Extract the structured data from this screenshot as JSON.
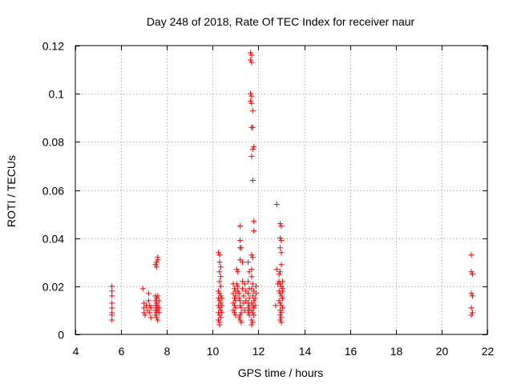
{
  "chart_data": {
    "type": "scatter",
    "title": "Day 248 of 2018, Rate Of TEC Index for receiver naur",
    "xlabel": "GPS time / hours",
    "ylabel": "ROTI / TECUs",
    "xlim": [
      4,
      22
    ],
    "ylim": [
      0,
      0.12
    ],
    "x_ticks": [
      4,
      6,
      8,
      10,
      12,
      14,
      16,
      18,
      20,
      22
    ],
    "x_tick_labels": [
      "4",
      "6",
      "8",
      "10",
      "12",
      "14",
      "16",
      "18",
      "20",
      "22"
    ],
    "y_ticks": [
      0,
      0.02,
      0.04,
      0.06,
      0.08,
      0.1,
      0.12
    ],
    "y_tick_labels": [
      "0",
      "0.02",
      "0.04",
      "0.06",
      "0.08",
      "0.1",
      "0.12"
    ],
    "grid": true,
    "marker": "plus",
    "series": [
      {
        "name": "ROTI",
        "color": "#ff0000",
        "points": [
          [
            5.6,
            0.02
          ],
          [
            5.6,
            0.018
          ],
          [
            5.6,
            0.016
          ],
          [
            5.6,
            0.013
          ],
          [
            5.6,
            0.011
          ],
          [
            5.6,
            0.009
          ],
          [
            5.6,
            0.008
          ],
          [
            5.6,
            0.006
          ],
          [
            6.95,
            0.019
          ],
          [
            7.0,
            0.013
          ],
          [
            7.0,
            0.011
          ],
          [
            7.0,
            0.009
          ],
          [
            7.05,
            0.008
          ],
          [
            7.1,
            0.012
          ],
          [
            7.15,
            0.01
          ],
          [
            7.2,
            0.017
          ],
          [
            7.2,
            0.014
          ],
          [
            7.25,
            0.012
          ],
          [
            7.25,
            0.009
          ],
          [
            7.3,
            0.007
          ],
          [
            7.3,
            0.011
          ],
          [
            7.5,
            0.029
          ],
          [
            7.55,
            0.03
          ],
          [
            7.55,
            0.028
          ],
          [
            7.6,
            0.032
          ],
          [
            7.6,
            0.031
          ],
          [
            7.5,
            0.016
          ],
          [
            7.5,
            0.014
          ],
          [
            7.5,
            0.012
          ],
          [
            7.5,
            0.01
          ],
          [
            7.5,
            0.008
          ],
          [
            7.55,
            0.015
          ],
          [
            7.55,
            0.013
          ],
          [
            7.55,
            0.011
          ],
          [
            7.55,
            0.009
          ],
          [
            7.55,
            0.007
          ],
          [
            7.6,
            0.016
          ],
          [
            7.6,
            0.012
          ],
          [
            7.6,
            0.01
          ],
          [
            7.6,
            0.006
          ],
          [
            7.65,
            0.014
          ],
          [
            7.65,
            0.011
          ],
          [
            7.65,
            0.009
          ],
          [
            10.25,
            0.034
          ],
          [
            10.3,
            0.033
          ],
          [
            10.3,
            0.03
          ],
          [
            10.35,
            0.028
          ],
          [
            10.3,
            0.026
          ],
          [
            10.35,
            0.024
          ],
          [
            10.3,
            0.022
          ],
          [
            10.35,
            0.02
          ],
          [
            10.25,
            0.018
          ],
          [
            10.3,
            0.017
          ],
          [
            10.35,
            0.016
          ],
          [
            10.25,
            0.015
          ],
          [
            10.3,
            0.014
          ],
          [
            10.35,
            0.013
          ],
          [
            10.25,
            0.012
          ],
          [
            10.3,
            0.011
          ],
          [
            10.35,
            0.01
          ],
          [
            10.25,
            0.009
          ],
          [
            10.3,
            0.008
          ],
          [
            10.35,
            0.007
          ],
          [
            10.25,
            0.006
          ],
          [
            10.3,
            0.005
          ],
          [
            10.3,
            0.004
          ],
          [
            10.4,
            0.015
          ],
          [
            10.4,
            0.012
          ],
          [
            10.4,
            0.009
          ],
          [
            10.9,
            0.021
          ],
          [
            10.95,
            0.019
          ],
          [
            10.9,
            0.017
          ],
          [
            10.95,
            0.015
          ],
          [
            10.9,
            0.013
          ],
          [
            10.95,
            0.012
          ],
          [
            10.9,
            0.01
          ],
          [
            10.95,
            0.009
          ],
          [
            11.0,
            0.018
          ],
          [
            11.0,
            0.016
          ],
          [
            11.0,
            0.014
          ],
          [
            11.0,
            0.011
          ],
          [
            11.0,
            0.008
          ],
          [
            11.05,
            0.027
          ],
          [
            11.1,
            0.026
          ],
          [
            11.2,
            0.045
          ],
          [
            11.2,
            0.039
          ],
          [
            11.2,
            0.036
          ],
          [
            11.25,
            0.036
          ],
          [
            11.2,
            0.031
          ],
          [
            11.3,
            0.03
          ],
          [
            11.05,
            0.021
          ],
          [
            11.1,
            0.02
          ],
          [
            11.1,
            0.018
          ],
          [
            11.15,
            0.017
          ],
          [
            11.15,
            0.015
          ],
          [
            11.2,
            0.014
          ],
          [
            11.2,
            0.012
          ],
          [
            11.25,
            0.011
          ],
          [
            11.25,
            0.009
          ],
          [
            11.2,
            0.008
          ],
          [
            11.15,
            0.007
          ],
          [
            11.2,
            0.006
          ],
          [
            11.25,
            0.005
          ],
          [
            11.3,
            0.022
          ],
          [
            11.3,
            0.019
          ],
          [
            11.35,
            0.016
          ],
          [
            11.35,
            0.013
          ],
          [
            11.4,
            0.021
          ],
          [
            11.4,
            0.01
          ],
          [
            11.45,
            0.018
          ],
          [
            11.45,
            0.014
          ],
          [
            11.55,
            0.03
          ],
          [
            11.6,
            0.026
          ],
          [
            11.55,
            0.022
          ],
          [
            11.6,
            0.019
          ],
          [
            11.55,
            0.017
          ],
          [
            11.6,
            0.015
          ],
          [
            11.55,
            0.013
          ],
          [
            11.6,
            0.012
          ],
          [
            11.55,
            0.011
          ],
          [
            11.6,
            0.01
          ],
          [
            11.55,
            0.009
          ],
          [
            11.6,
            0.008
          ],
          [
            11.65,
            0.117
          ],
          [
            11.7,
            0.116
          ],
          [
            11.65,
            0.114
          ],
          [
            11.7,
            0.113
          ],
          [
            11.65,
            0.1
          ],
          [
            11.7,
            0.099
          ],
          [
            11.65,
            0.097
          ],
          [
            11.7,
            0.096
          ],
          [
            11.75,
            0.093
          ],
          [
            11.7,
            0.086
          ],
          [
            11.75,
            0.086
          ],
          [
            11.8,
            0.078
          ],
          [
            11.75,
            0.077
          ],
          [
            11.7,
            0.074
          ],
          [
            11.75,
            0.064
          ],
          [
            11.8,
            0.047
          ],
          [
            11.8,
            0.043
          ],
          [
            11.7,
            0.033
          ],
          [
            11.75,
            0.032
          ],
          [
            11.7,
            0.027
          ],
          [
            11.7,
            0.024
          ],
          [
            11.75,
            0.021
          ],
          [
            11.7,
            0.019
          ],
          [
            11.8,
            0.018
          ],
          [
            11.75,
            0.016
          ],
          [
            11.8,
            0.014
          ],
          [
            11.7,
            0.013
          ],
          [
            11.75,
            0.012
          ],
          [
            11.8,
            0.011
          ],
          [
            11.7,
            0.01
          ],
          [
            11.75,
            0.009
          ],
          [
            11.8,
            0.008
          ],
          [
            11.7,
            0.006
          ],
          [
            11.75,
            0.005
          ],
          [
            11.7,
            0.004
          ],
          [
            11.85,
            0.015
          ],
          [
            11.85,
            0.012
          ],
          [
            11.9,
            0.02
          ],
          [
            11.9,
            0.017
          ],
          [
            12.8,
            0.054
          ],
          [
            12.8,
            0.027
          ],
          [
            12.75,
            0.012
          ],
          [
            12.85,
            0.021
          ],
          [
            12.9,
            0.025
          ],
          [
            12.95,
            0.046
          ],
          [
            13.0,
            0.045
          ],
          [
            12.95,
            0.04
          ],
          [
            13.0,
            0.039
          ],
          [
            12.95,
            0.036
          ],
          [
            13.0,
            0.034
          ],
          [
            13.0,
            0.029
          ],
          [
            12.95,
            0.026
          ],
          [
            12.9,
            0.022
          ],
          [
            12.95,
            0.021
          ],
          [
            13.0,
            0.02
          ],
          [
            13.05,
            0.019
          ],
          [
            12.9,
            0.018
          ],
          [
            12.95,
            0.017
          ],
          [
            13.0,
            0.016
          ],
          [
            13.05,
            0.015
          ],
          [
            12.9,
            0.014
          ],
          [
            12.95,
            0.013
          ],
          [
            13.0,
            0.012
          ],
          [
            13.05,
            0.011
          ],
          [
            12.95,
            0.01
          ],
          [
            13.0,
            0.009
          ],
          [
            12.95,
            0.008
          ],
          [
            13.0,
            0.007
          ],
          [
            12.95,
            0.006
          ],
          [
            13.0,
            0.005
          ],
          [
            13.05,
            0.022
          ],
          [
            13.05,
            0.018
          ],
          [
            21.3,
            0.033
          ],
          [
            21.3,
            0.026
          ],
          [
            21.35,
            0.025
          ],
          [
            21.3,
            0.017
          ],
          [
            21.35,
            0.016
          ],
          [
            21.3,
            0.011
          ],
          [
            21.35,
            0.009
          ],
          [
            21.3,
            0.008
          ]
        ]
      }
    ]
  }
}
